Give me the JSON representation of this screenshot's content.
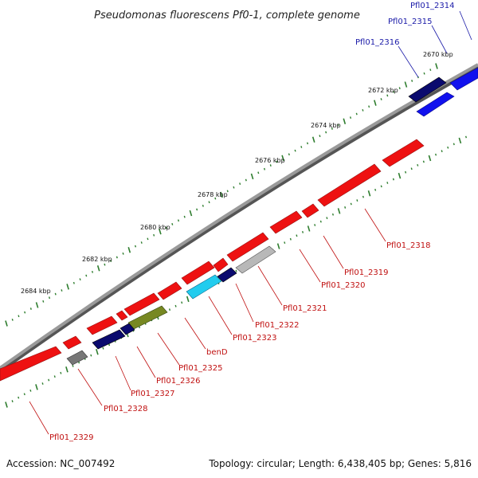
{
  "title": "Pseudomonas fluorescens Pf0-1, complete genome",
  "footer": {
    "accession": "Accession: NC_007492",
    "summary": "Topology: circular; Length: 6,438,405 bp; Genes: 5,816"
  },
  "colors": {
    "backbone": "#8a8a8a",
    "tick": "#2e7d2e",
    "reverse_gene": "#ee1111",
    "forward_gene": "#1111ee",
    "navy_gene": "#0a0a6e",
    "gray_gene": "#777777",
    "olive_gene": "#778822",
    "cyan_gene": "#22ccee",
    "lightgray_gene": "#b8b8b8",
    "forward_label": "#1a1aa8",
    "reverse_label": "#c01010"
  },
  "axis_labels": [
    "2670 kbp",
    "2672 kbp",
    "2674 kbp",
    "2676 kbp",
    "2678 kbp",
    "2680 kbp",
    "2682 kbp",
    "2684 kbp"
  ],
  "forward_genes": [
    {
      "name": "Pfl01_2314",
      "color": "forward"
    },
    {
      "name": "Pfl01_2315",
      "color": "forward"
    },
    {
      "name": "Pfl01_2316",
      "color": "navy"
    }
  ],
  "reverse_genes": [
    {
      "name": "Pfl01_2318",
      "color": "reverse"
    },
    {
      "name": "Pfl01_2319",
      "color": "reverse"
    },
    {
      "name": "Pfl01_2320",
      "color": "reverse"
    },
    {
      "name": "Pfl01_2321",
      "color": "lightgray"
    },
    {
      "name": "Pfl01_2322",
      "color": "navy"
    },
    {
      "name": "Pfl01_2323",
      "color": "cyan"
    },
    {
      "name": "benD",
      "color": "reverse"
    },
    {
      "name": "Pfl01_2325",
      "color": "olive"
    },
    {
      "name": "Pfl01_2326",
      "color": "navy"
    },
    {
      "name": "Pfl01_2327",
      "color": "navy"
    },
    {
      "name": "Pfl01_2328",
      "color": "gray"
    },
    {
      "name": "Pfl01_2329",
      "color": "reverse"
    }
  ]
}
